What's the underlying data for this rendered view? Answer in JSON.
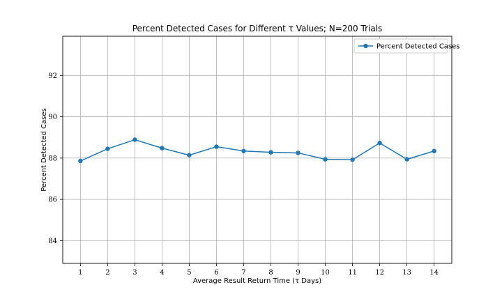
{
  "chart_data": {
    "type": "line",
    "title": "Percent Detected Cases for Different τ Values; N=200 Trials",
    "xlabel": "Average Result Return Time (τ Days)",
    "ylabel": "Percent Detected Cases",
    "x": [
      1,
      2,
      3,
      4,
      5,
      6,
      7,
      8,
      9,
      10,
      11,
      12,
      13,
      14
    ],
    "x_tick_labels": [
      "1",
      "2",
      "3",
      "4",
      "5",
      "6",
      "7",
      "8",
      "9",
      "10",
      "11",
      "12",
      "13",
      "14"
    ],
    "y_ticks": [
      84,
      86,
      88,
      90,
      92
    ],
    "y_tick_labels": [
      "84",
      "86",
      "88",
      "90",
      "92"
    ],
    "xlim": [
      0.35,
      14.65
    ],
    "ylim": [
      82.9,
      93.9
    ],
    "grid": true,
    "legend_position": "top-right",
    "series": [
      {
        "name": "Percent Detected Cases",
        "color": "#1f77b4",
        "values": [
          87.86,
          88.45,
          88.89,
          88.48,
          88.14,
          88.55,
          88.34,
          88.28,
          88.25,
          87.94,
          87.92,
          88.73,
          87.94,
          88.34
        ]
      }
    ]
  }
}
